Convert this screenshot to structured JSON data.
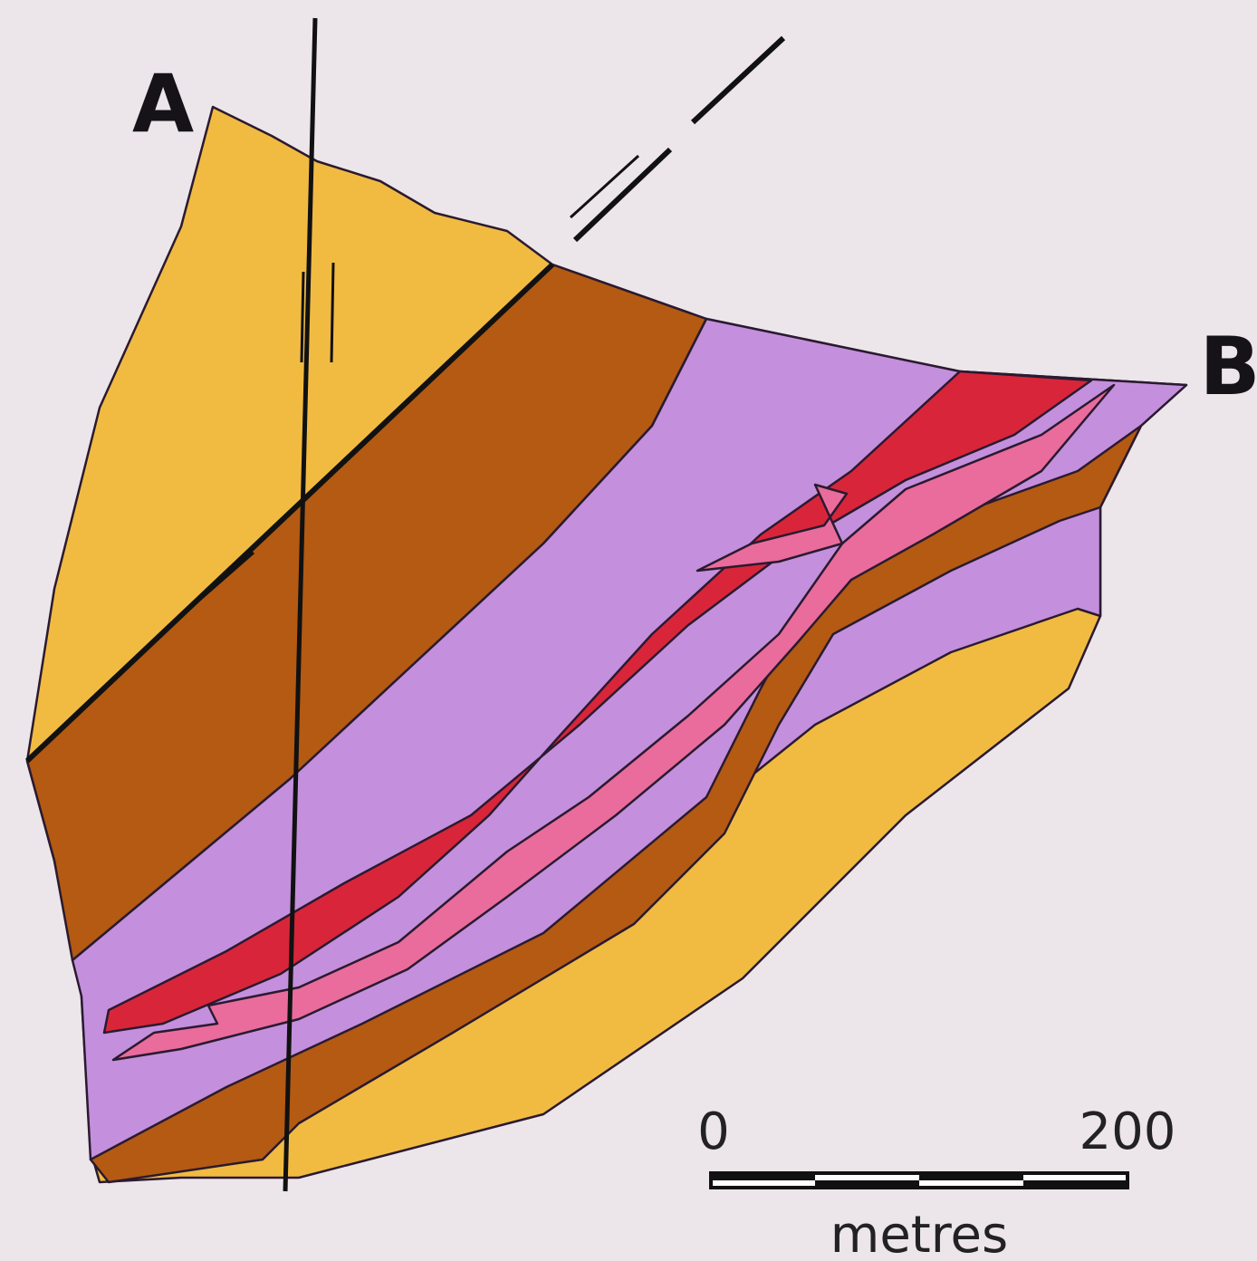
{
  "labels": {
    "a": "A",
    "b": "B"
  },
  "scale_bar": {
    "start": "0",
    "end": "200",
    "unit": "metres"
  }
}
